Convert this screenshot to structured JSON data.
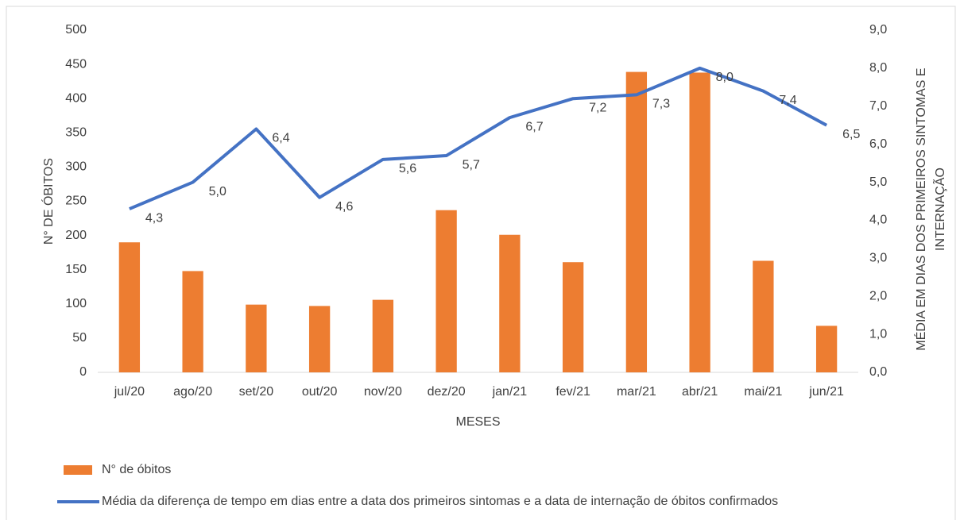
{
  "chart_data": {
    "type": "bar",
    "x_label": "MESES",
    "y_label": "N° DE ÓBITOS",
    "y2_label": [
      "MÉDIA EM DIAS DOS PRIMEIROS SINTOMAS E",
      "INTERNAÇÃO"
    ],
    "categories": [
      "jul/20",
      "ago/20",
      "set/20",
      "out/20",
      "nov/20",
      "dez/20",
      "jan/21",
      "fev/21",
      "mar/21",
      "abr/21",
      "mai/21",
      "jun/21"
    ],
    "series": [
      {
        "name": "N° de óbitos",
        "type": "bar",
        "color": "#ed7d31",
        "values": [
          190,
          148,
          99,
          97,
          106,
          237,
          201,
          161,
          439,
          438,
          163,
          68
        ]
      },
      {
        "name": "Média da diferença de tempo em dias entre a data dos primeiros sintomas e a data de internação de óbitos confirmados",
        "type": "line",
        "axis": "y2",
        "color": "#4472c4",
        "values": [
          4.3,
          5.0,
          6.4,
          4.6,
          5.6,
          5.7,
          6.7,
          7.2,
          7.3,
          8.0,
          7.4,
          6.5
        ],
        "value_labels": [
          "4,3",
          "5,0",
          "6,4",
          "4,6",
          "5,6",
          "5,7",
          "6,7",
          "7,2",
          "7,3",
          "8,0",
          "7,4",
          "6,5"
        ]
      }
    ],
    "ylim": [
      0,
      500
    ],
    "yticks": [
      0,
      50,
      100,
      150,
      200,
      250,
      300,
      350,
      400,
      450,
      500
    ],
    "y2lim": [
      0,
      9
    ],
    "y2ticks": [
      {
        "value": 0,
        "label": "0,0"
      },
      {
        "value": 1,
        "label": "1,0"
      },
      {
        "value": 2,
        "label": "2,0"
      },
      {
        "value": 3,
        "label": "3,0"
      },
      {
        "value": 4,
        "label": "4,0"
      },
      {
        "value": 5,
        "label": "5,0"
      },
      {
        "value": 6,
        "label": "6,0"
      },
      {
        "value": 7,
        "label": "7,0"
      },
      {
        "value": 8,
        "label": "8,0"
      },
      {
        "value": 9,
        "label": "9,0"
      }
    ],
    "grid": false,
    "legend": "bottom"
  }
}
